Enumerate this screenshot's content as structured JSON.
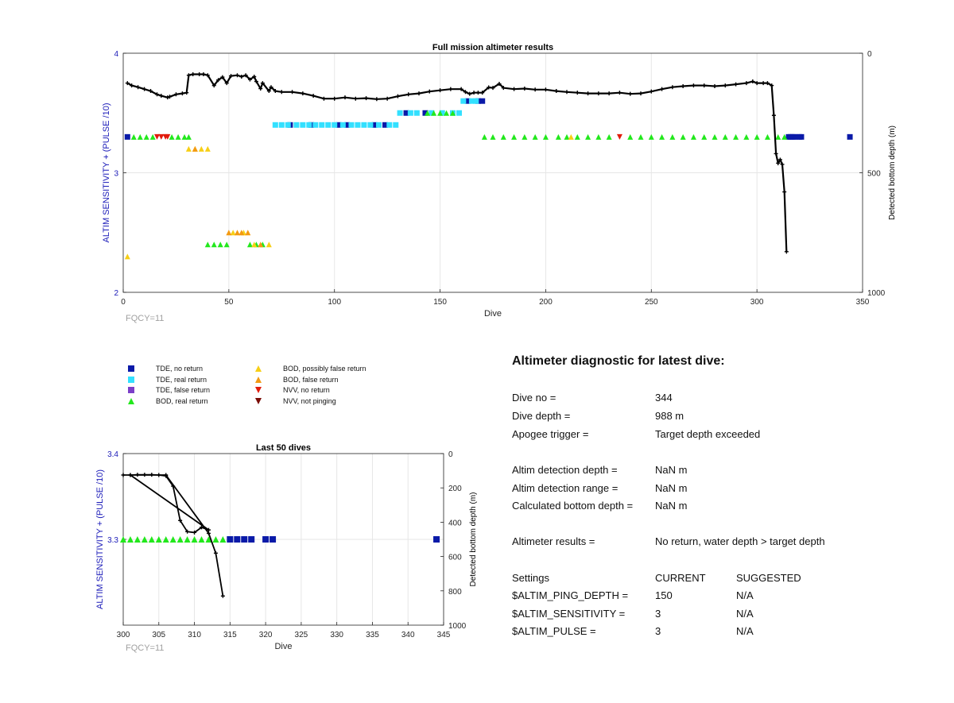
{
  "chart_data": [
    {
      "type": "scatter",
      "title": "Full mission altimeter results",
      "xlabel": "Dive",
      "ylabel": "ALTIM SENSITIVITY + (PULSE /10)",
      "y2label": "Detected bottom depth (m)",
      "xlim": [
        0,
        350
      ],
      "ylim": [
        2,
        4
      ],
      "y2lim": [
        1000,
        0
      ],
      "xticks": [
        "0",
        "50",
        "100",
        "150",
        "200",
        "250",
        "300",
        "350"
      ],
      "yticks": [
        "2",
        "3",
        "4"
      ],
      "y2ticks": [
        "0",
        "500",
        "1000"
      ],
      "grid": true,
      "footnote": "FQCY=11",
      "series": [
        {
          "name": "TDE, no return",
          "marker": "square",
          "color": "#0a1aa8",
          "points": [
            [
              2,
              3.3
            ],
            [
              79,
              3.4
            ],
            [
              89,
              3.4
            ],
            [
              102,
              3.4
            ],
            [
              106,
              3.4
            ],
            [
              119,
              3.4
            ],
            [
              124,
              3.4
            ],
            [
              134,
              3.5
            ],
            [
              143,
              3.5
            ],
            [
              163,
              3.6
            ],
            [
              168,
              3.6
            ],
            [
              170,
              3.6
            ],
            [
              315,
              3.3
            ],
            [
              316,
              3.3
            ],
            [
              317,
              3.3
            ],
            [
              318,
              3.3
            ],
            [
              320,
              3.3
            ],
            [
              321,
              3.3
            ],
            [
              344,
              3.3
            ]
          ]
        },
        {
          "name": "TDE, real return",
          "marker": "square",
          "color": "#33e0ff",
          "points": [
            [
              72,
              3.4
            ],
            [
              75,
              3.4
            ],
            [
              78,
              3.4
            ],
            [
              82,
              3.4
            ],
            [
              85,
              3.4
            ],
            [
              88,
              3.4
            ],
            [
              91,
              3.4
            ],
            [
              94,
              3.4
            ],
            [
              97,
              3.4
            ],
            [
              100,
              3.4
            ],
            [
              104,
              3.4
            ],
            [
              108,
              3.4
            ],
            [
              111,
              3.4
            ],
            [
              114,
              3.4
            ],
            [
              117,
              3.4
            ],
            [
              121,
              3.4
            ],
            [
              126,
              3.4
            ],
            [
              129,
              3.4
            ],
            [
              131,
              3.5
            ],
            [
              136,
              3.5
            ],
            [
              139,
              3.5
            ],
            [
              146,
              3.5
            ],
            [
              151,
              3.5
            ],
            [
              156,
              3.5
            ],
            [
              159,
              3.5
            ],
            [
              161,
              3.6
            ],
            [
              165,
              3.6
            ],
            [
              167,
              3.6
            ]
          ]
        },
        {
          "name": "TDE, false return",
          "marker": "square",
          "color": "#7b3fc8",
          "points": []
        },
        {
          "name": "BOD, real return",
          "marker": "triangle-up",
          "color": "#22e81c",
          "points": [
            [
              5,
              3.3
            ],
            [
              8,
              3.3
            ],
            [
              11,
              3.3
            ],
            [
              14,
              3.3
            ],
            [
              23,
              3.3
            ],
            [
              26,
              3.3
            ],
            [
              29,
              3.3
            ],
            [
              31,
              3.3
            ],
            [
              40,
              2.4
            ],
            [
              43,
              2.4
            ],
            [
              46,
              2.4
            ],
            [
              49,
              2.4
            ],
            [
              60,
              2.4
            ],
            [
              63,
              2.4
            ],
            [
              66,
              2.4
            ],
            [
              144,
              3.5
            ],
            [
              147,
              3.5
            ],
            [
              150,
              3.5
            ],
            [
              153,
              3.5
            ],
            [
              156,
              3.5
            ],
            [
              171,
              3.3
            ],
            [
              175,
              3.3
            ],
            [
              180,
              3.3
            ],
            [
              185,
              3.3
            ],
            [
              190,
              3.3
            ],
            [
              195,
              3.3
            ],
            [
              200,
              3.3
            ],
            [
              206,
              3.3
            ],
            [
              210,
              3.3
            ],
            [
              215,
              3.3
            ],
            [
              220,
              3.3
            ],
            [
              225,
              3.3
            ],
            [
              230,
              3.3
            ],
            [
              240,
              3.3
            ],
            [
              245,
              3.3
            ],
            [
              250,
              3.3
            ],
            [
              255,
              3.3
            ],
            [
              260,
              3.3
            ],
            [
              265,
              3.3
            ],
            [
              270,
              3.3
            ],
            [
              275,
              3.3
            ],
            [
              280,
              3.3
            ],
            [
              285,
              3.3
            ],
            [
              290,
              3.3
            ],
            [
              295,
              3.3
            ],
            [
              300,
              3.3
            ],
            [
              305,
              3.3
            ],
            [
              310,
              3.3
            ],
            [
              313,
              3.3
            ]
          ]
        },
        {
          "name": "BOD, possibly false return",
          "marker": "triangle-up",
          "color": "#f7cf16",
          "points": [
            [
              2,
              2.3
            ],
            [
              31,
              3.2
            ],
            [
              34,
              3.2
            ],
            [
              37,
              3.2
            ],
            [
              40,
              3.2
            ],
            [
              52,
              2.5
            ],
            [
              57,
              2.5
            ],
            [
              62,
              2.4
            ],
            [
              69,
              2.4
            ],
            [
              212,
              3.3
            ]
          ]
        },
        {
          "name": "BOD, false return",
          "marker": "triangle-up",
          "color": "#f39a12",
          "points": [
            [
              34,
              3.2
            ],
            [
              50,
              2.5
            ],
            [
              54,
              2.5
            ],
            [
              56,
              2.5
            ],
            [
              59,
              2.5
            ],
            [
              65,
              2.4
            ]
          ]
        },
        {
          "name": "NVV, no return",
          "marker": "triangle-down",
          "color": "#e11b0c",
          "points": [
            [
              16,
              3.3
            ],
            [
              18,
              3.3
            ],
            [
              20,
              3.3
            ],
            [
              21,
              3.3
            ],
            [
              235,
              3.3
            ]
          ]
        },
        {
          "name": "NVV, not pinging",
          "marker": "triangle-down",
          "color": "#7a0c06",
          "points": []
        }
      ],
      "bottom_depth_m": [
        [
          2,
          125
        ],
        [
          4,
          135
        ],
        [
          7,
          142
        ],
        [
          10,
          150
        ],
        [
          13,
          158
        ],
        [
          16,
          172
        ],
        [
          18,
          178
        ],
        [
          21,
          185
        ],
        [
          22,
          182
        ],
        [
          25,
          172
        ],
        [
          28,
          168
        ],
        [
          30,
          165
        ],
        [
          31,
          92
        ],
        [
          33,
          88
        ],
        [
          36,
          88
        ],
        [
          38,
          88
        ],
        [
          40,
          92
        ],
        [
          43,
          135
        ],
        [
          45,
          112
        ],
        [
          47,
          100
        ],
        [
          49,
          125
        ],
        [
          51,
          95
        ],
        [
          54,
          92
        ],
        [
          56,
          98
        ],
        [
          58,
          92
        ],
        [
          60,
          110
        ],
        [
          62,
          98
        ],
        [
          63,
          118
        ],
        [
          65,
          148
        ],
        [
          66,
          125
        ],
        [
          69,
          158
        ],
        [
          70,
          142
        ],
        [
          72,
          158
        ],
        [
          75,
          162
        ],
        [
          80,
          162
        ],
        [
          85,
          168
        ],
        [
          90,
          178
        ],
        [
          95,
          190
        ],
        [
          100,
          190
        ],
        [
          105,
          185
        ],
        [
          110,
          190
        ],
        [
          115,
          188
        ],
        [
          120,
          192
        ],
        [
          125,
          190
        ],
        [
          130,
          180
        ],
        [
          135,
          172
        ],
        [
          140,
          168
        ],
        [
          145,
          160
        ],
        [
          150,
          155
        ],
        [
          155,
          150
        ],
        [
          160,
          150
        ],
        [
          162,
          162
        ],
        [
          164,
          170
        ],
        [
          166,
          165
        ],
        [
          168,
          165
        ],
        [
          170,
          165
        ],
        [
          173,
          143
        ],
        [
          175,
          145
        ],
        [
          178,
          128
        ],
        [
          180,
          145
        ],
        [
          185,
          150
        ],
        [
          190,
          148
        ],
        [
          195,
          152
        ],
        [
          200,
          152
        ],
        [
          205,
          158
        ],
        [
          210,
          162
        ],
        [
          215,
          165
        ],
        [
          220,
          168
        ],
        [
          225,
          168
        ],
        [
          230,
          168
        ],
        [
          235,
          165
        ],
        [
          240,
          170
        ],
        [
          245,
          168
        ],
        [
          250,
          160
        ],
        [
          255,
          150
        ],
        [
          260,
          142
        ],
        [
          265,
          138
        ],
        [
          270,
          135
        ],
        [
          275,
          135
        ],
        [
          280,
          138
        ],
        [
          285,
          135
        ],
        [
          290,
          130
        ],
        [
          295,
          125
        ],
        [
          298,
          118
        ],
        [
          300,
          125
        ],
        [
          303,
          125
        ],
        [
          305,
          125
        ],
        [
          307,
          135
        ],
        [
          308,
          260
        ],
        [
          309,
          420
        ],
        [
          310,
          460
        ],
        [
          311,
          445
        ],
        [
          312,
          465
        ],
        [
          313,
          580
        ],
        [
          314,
          830
        ]
      ]
    },
    {
      "type": "scatter",
      "title": "Last 50 dives",
      "xlabel": "Dive",
      "ylabel": "ALTIM SENSITIVITY + (PULSE /10)",
      "y2label": "Detected bottom depth (m)",
      "xlim": [
        300,
        345
      ],
      "ylim": [
        3.2,
        3.4
      ],
      "y2lim": [
        1000,
        0
      ],
      "xticks": [
        "300",
        "305",
        "310",
        "315",
        "320",
        "325",
        "330",
        "335",
        "340",
        "345"
      ],
      "yticks": [
        "3.3",
        "3.4"
      ],
      "y2ticks": [
        "0",
        "200",
        "400",
        "600",
        "800",
        "1000"
      ],
      "grid": true,
      "footnote": "FQCY=11",
      "series": [
        {
          "name": "BOD, real return",
          "marker": "triangle-up",
          "color": "#22e81c",
          "points": [
            [
              300,
              3.3
            ],
            [
              301,
              3.3
            ],
            [
              302,
              3.3
            ],
            [
              303,
              3.3
            ],
            [
              304,
              3.3
            ],
            [
              305,
              3.3
            ],
            [
              306,
              3.3
            ],
            [
              307,
              3.3
            ],
            [
              308,
              3.3
            ],
            [
              309,
              3.3
            ],
            [
              310,
              3.3
            ],
            [
              311,
              3.3
            ],
            [
              312,
              3.3
            ],
            [
              313,
              3.3
            ],
            [
              314,
              3.3
            ]
          ]
        },
        {
          "name": "TDE, no return",
          "marker": "square",
          "color": "#0a1aa8",
          "points": [
            [
              315,
              3.3
            ],
            [
              316,
              3.3
            ],
            [
              317,
              3.3
            ],
            [
              318,
              3.3
            ],
            [
              320,
              3.3
            ],
            [
              321,
              3.3
            ],
            [
              344,
              3.3
            ]
          ]
        }
      ],
      "bottom_depth_m": [
        [
          300,
          125
        ],
        [
          301,
          125
        ],
        [
          302,
          123
        ],
        [
          303,
          123
        ],
        [
          304,
          123
        ],
        [
          305,
          125
        ],
        [
          306,
          130
        ],
        [
          307,
          190
        ],
        [
          308,
          390
        ],
        [
          309,
          455
        ],
        [
          310,
          460
        ],
        [
          311,
          430
        ],
        [
          312,
          445
        ],
        [
          301,
          125
        ],
        [
          306,
          125
        ],
        [
          312,
          465
        ],
        [
          313,
          580
        ],
        [
          314,
          830
        ]
      ]
    }
  ],
  "legend": [
    {
      "label": "TDE, no return",
      "marker": "square",
      "color": "#0a1aa8"
    },
    {
      "label": "TDE, real return",
      "marker": "square",
      "color": "#33e0ff"
    },
    {
      "label": "TDE, false return",
      "marker": "square",
      "color": "#7b3fc8"
    },
    {
      "label": "BOD, real return",
      "marker": "triangle-up",
      "color": "#22e81c"
    },
    {
      "label": "BOD, possibly false return",
      "marker": "triangle-up",
      "color": "#f7cf16"
    },
    {
      "label": "BOD, false return",
      "marker": "triangle-up",
      "color": "#f39a12"
    },
    {
      "label": "NVV, no return",
      "marker": "triangle-down",
      "color": "#e11b0c"
    },
    {
      "label": "NVV, not pinging",
      "marker": "triangle-down",
      "color": "#7a0c06"
    }
  ],
  "diagnostic": {
    "title": "Altimeter diagnostic for latest dive:",
    "dive_no_label": "Dive no =",
    "dive_no": "344",
    "dive_depth_label": "Dive depth =",
    "dive_depth": "988 m",
    "apogee_label": "Apogee trigger =",
    "apogee": "Target depth exceeded",
    "altim_depth_label": "Altim detection depth =",
    "altim_depth": "NaN m",
    "altim_range_label": "Altim detection range =",
    "altim_range": "NaN m",
    "calc_bottom_label": "Calculated bottom depth =",
    "calc_bottom": "NaN m",
    "results_label": "Altimeter results =",
    "results": "No return, water depth > target depth",
    "settings_label": "Settings",
    "current_label": "CURRENT",
    "suggested_label": "SUGGESTED",
    "ping_depth_label": "$ALTIM_PING_DEPTH =",
    "ping_depth_current": "150",
    "ping_depth_suggested": "N/A",
    "sensitivity_label": "$ALTIM_SENSITIVITY =",
    "sensitivity_current": "3",
    "sensitivity_suggested": "N/A",
    "pulse_label": "$ALTIM_PULSE =",
    "pulse_current": "3",
    "pulse_suggested": "N/A"
  },
  "colors": {
    "axis_left": "#1a1ab8",
    "axis": "#262626",
    "grid": "#e6e6e6",
    "footnote": "#a0a0a0",
    "depth_line": "#000000"
  }
}
